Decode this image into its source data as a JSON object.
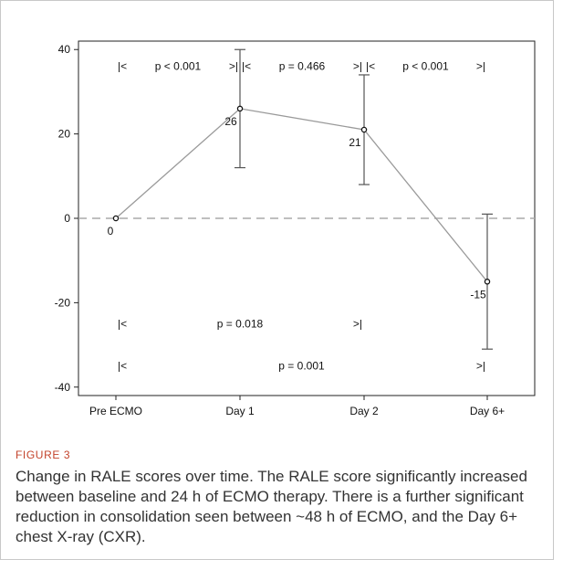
{
  "chart_data": {
    "type": "line",
    "categories": [
      "Pre ECMO",
      "Day 1",
      "Day 2",
      "Day 6+"
    ],
    "series": [
      {
        "values": [
          0,
          26,
          21,
          -15
        ],
        "error_bars": [
          null,
          {
            "low": 12,
            "high": 40
          },
          {
            "low": 8,
            "high": 34
          },
          {
            "low": -31,
            "high": 1
          }
        ],
        "point_labels": [
          "0",
          "26",
          "21",
          "-15"
        ]
      }
    ],
    "ylim": [
      -42,
      42
    ],
    "yticks": [
      40,
      20,
      0,
      -20,
      -40
    ],
    "ytick_labels": [
      "40",
      "20",
      "0",
      "-20",
      "-40"
    ],
    "reference_line": 0,
    "grid": false,
    "annotations": [
      {
        "start": "|<",
        "text": "p < 0.001",
        "end": ">|",
        "from": 0,
        "to": 1,
        "level": 36
      },
      {
        "start": "|<",
        "text": "p = 0.466",
        "end": ">|",
        "from": 1,
        "to": 2,
        "level": 36
      },
      {
        "start": "|<",
        "text": "p < 0.001",
        "end": ">|",
        "from": 2,
        "to": 3,
        "level": 36
      },
      {
        "start": "|<",
        "text": "p = 0.018",
        "end": ">|",
        "from": 0,
        "to": 2,
        "level": -25
      },
      {
        "start": "|<",
        "text": "p = 0.001",
        "end": ">|",
        "from": 0,
        "to": 3,
        "level": -35
      }
    ],
    "colors": {
      "line": "#9a9a9a",
      "errorbar": "#555555",
      "reference": "#aaaaaa",
      "caption_label": "#c3432b"
    }
  },
  "caption": {
    "label": "FIGURE 3",
    "text": "Change in RALE scores over time. The RALE score significantly increased between baseline and 24 h of ECMO therapy. There is a further significant reduction in consolidation seen between ~48 h of ECMO, and the Day 6+ chest X-ray (CXR)."
  }
}
